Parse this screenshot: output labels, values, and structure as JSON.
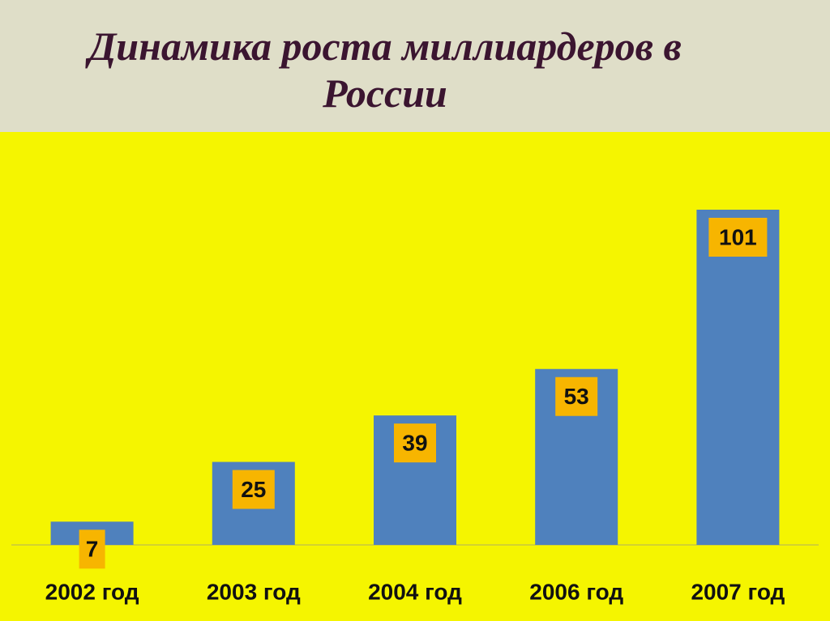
{
  "chart_data": {
    "type": "bar",
    "title": "Динамика роста миллиардеров в России",
    "categories": [
      "2002 год",
      "2003 год",
      "2004 год",
      "2006 год",
      "2007 год"
    ],
    "values": [
      7,
      25,
      39,
      53,
      101
    ],
    "color": "#4f81bd"
  }
}
